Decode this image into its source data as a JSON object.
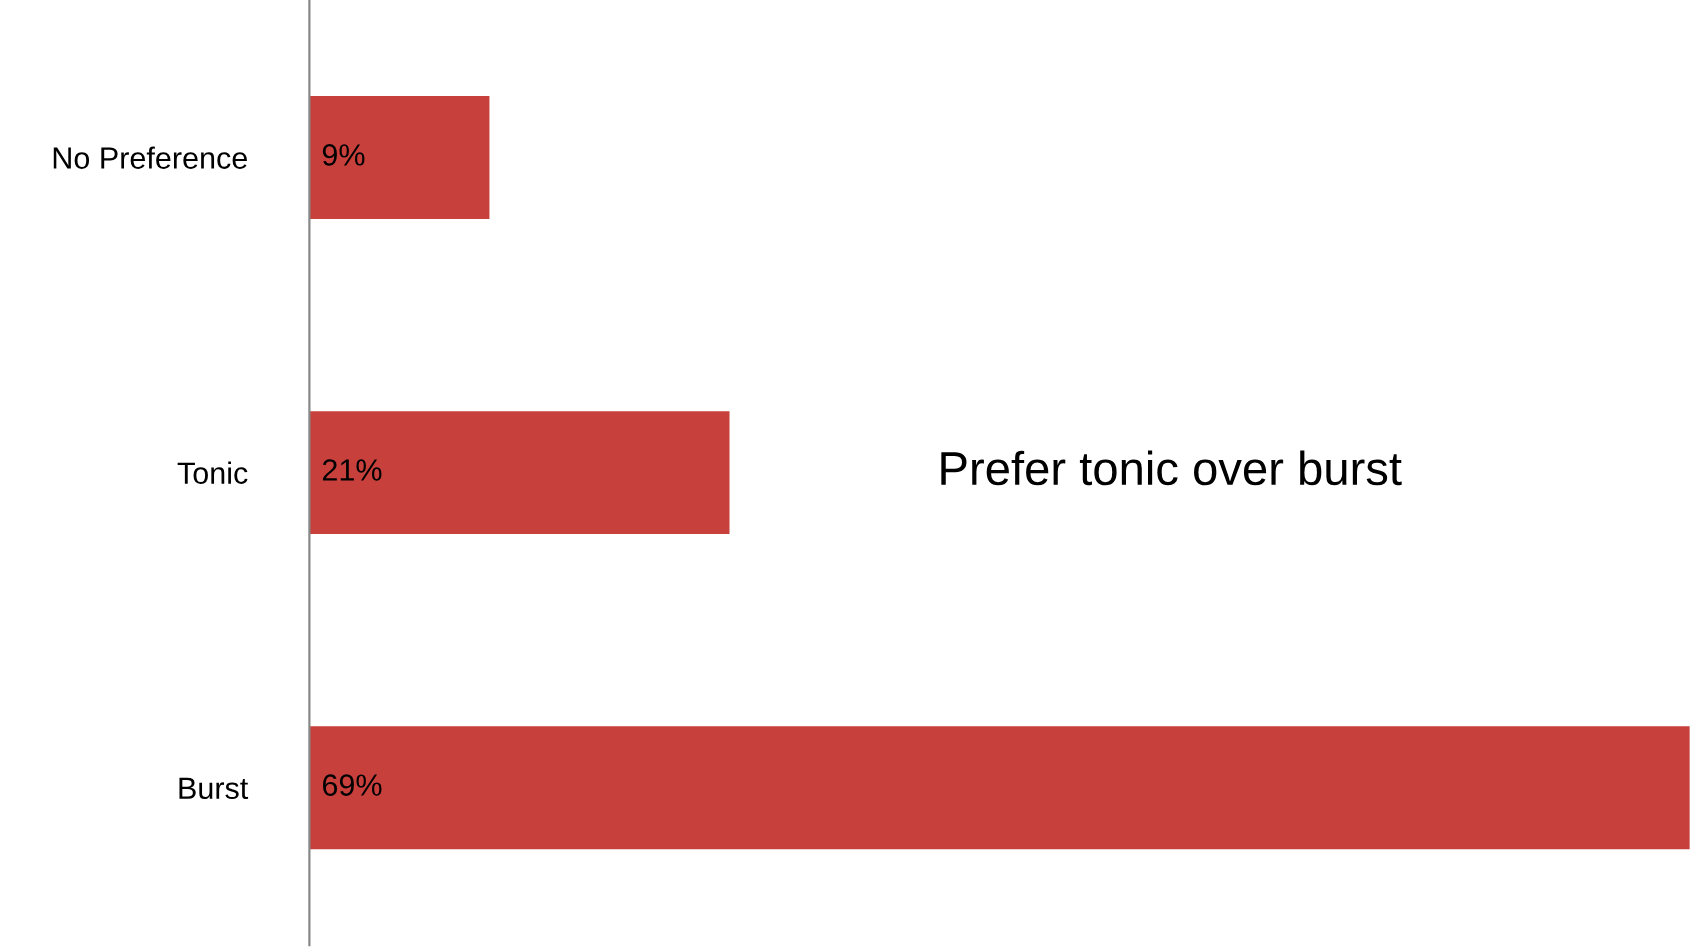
{
  "chart_data": {
    "type": "bar",
    "orientation": "horizontal",
    "categories": [
      "No Preference",
      "Tonic",
      "Burst"
    ],
    "values": [
      9,
      21,
      69
    ],
    "value_labels": [
      "9%",
      "21%",
      "69%"
    ],
    "color": "#c8403c",
    "grid": false,
    "legend": false,
    "tick_labels": "y",
    "annotations": [
      "Prefer tonic over burst"
    ]
  }
}
